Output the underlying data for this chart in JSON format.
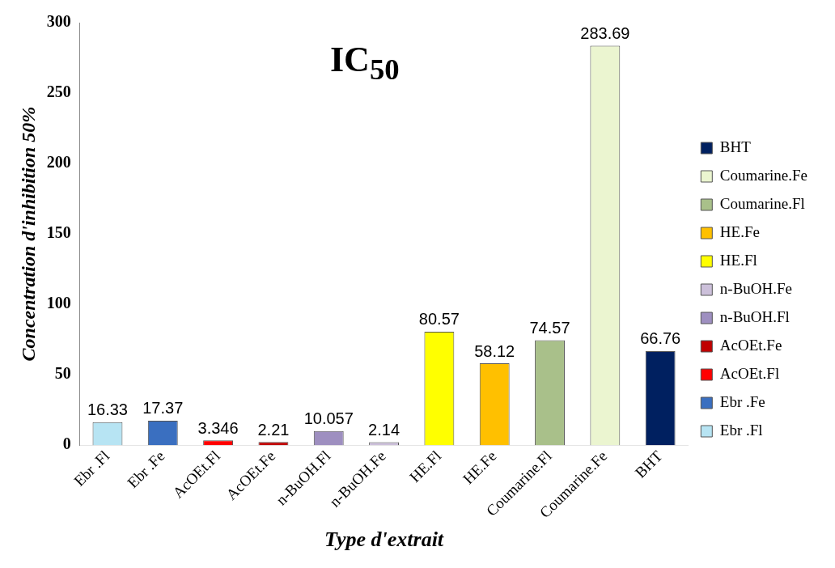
{
  "chart_data": {
    "type": "bar",
    "title": "IC$_{50}$",
    "xlabel": "Type d'extrait",
    "ylabel": "Concentration d'inhibition 50%",
    "categories": [
      "Ebr .Fl",
      "Ebr .Fe",
      "AcOEt.Fl",
      "AcOEt.Fe",
      "n-BuOH.Fl",
      "n-BuOH.Fe",
      "HE.Fl",
      "HE.Fe",
      "Coumarine.Fl",
      "Coumarine.Fe",
      "BHT"
    ],
    "series": [
      {
        "name": "Ebr .Fl",
        "color": "#b7e4f3",
        "values": [
          16.33,
          null,
          null,
          null,
          null,
          null,
          null,
          null,
          null,
          null,
          null
        ]
      },
      {
        "name": "Ebr .Fe",
        "color": "#3a6fc0",
        "values": [
          null,
          17.37,
          null,
          null,
          null,
          null,
          null,
          null,
          null,
          null,
          null
        ]
      },
      {
        "name": "AcOEt.Fl",
        "color": "#ff0000",
        "values": [
          null,
          null,
          3.346,
          null,
          null,
          null,
          null,
          null,
          null,
          null,
          null
        ]
      },
      {
        "name": "AcOEt.Fe",
        "color": "#c00000",
        "values": [
          null,
          null,
          null,
          2.21,
          null,
          null,
          null,
          null,
          null,
          null,
          null
        ]
      },
      {
        "name": "n-BuOH.Fl",
        "color": "#9e8fc0",
        "values": [
          null,
          null,
          null,
          null,
          10.057,
          null,
          null,
          null,
          null,
          null,
          null
        ]
      },
      {
        "name": "n-BuOH.Fe",
        "color": "#ccc0da",
        "values": [
          null,
          null,
          null,
          null,
          null,
          2.14,
          null,
          null,
          null,
          null,
          null
        ]
      },
      {
        "name": "HE.Fl",
        "color": "#ffff00",
        "values": [
          null,
          null,
          null,
          null,
          null,
          null,
          80.57,
          null,
          null,
          null,
          null
        ]
      },
      {
        "name": "HE.Fe",
        "color": "#ffc000",
        "values": [
          null,
          null,
          null,
          null,
          null,
          null,
          null,
          58.12,
          null,
          null,
          null
        ]
      },
      {
        "name": "Coumarine.Fl",
        "color": "#a9c08a",
        "values": [
          null,
          null,
          null,
          null,
          null,
          null,
          null,
          null,
          74.57,
          null,
          null
        ]
      },
      {
        "name": "Coumarine.Fe",
        "color": "#ebf5d0",
        "values": [
          null,
          null,
          null,
          null,
          null,
          null,
          null,
          null,
          null,
          283.69,
          null
        ]
      },
      {
        "name": "BHT",
        "color": "#002060",
        "values": [
          null,
          null,
          null,
          null,
          null,
          null,
          null,
          null,
          null,
          null,
          66.76
        ]
      }
    ],
    "ylim": [
      0,
      300
    ],
    "yticks": [
      0,
      50,
      100,
      150,
      200,
      250,
      300
    ],
    "grid": false,
    "legend": "right",
    "data_labels": true
  }
}
